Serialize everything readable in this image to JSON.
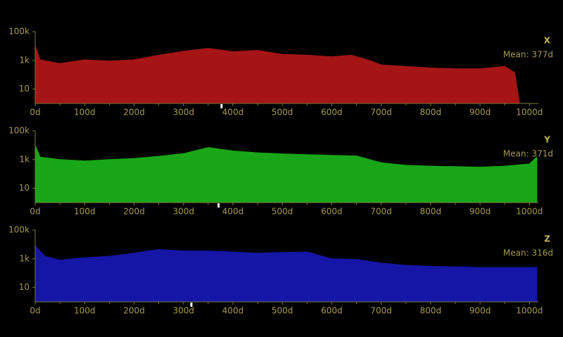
{
  "chart_data": [
    {
      "type": "area",
      "title": "X",
      "color": "#a51515",
      "yscale": "log",
      "x": [
        0,
        10,
        50,
        100,
        150,
        200,
        250,
        300,
        350,
        400,
        450,
        500,
        550,
        600,
        640,
        680,
        700,
        750,
        800,
        850,
        900,
        950,
        970,
        975,
        980
      ],
      "values": [
        10000,
        1100,
        600,
        1100,
        900,
        1100,
        2300,
        4300,
        7000,
        4000,
        5000,
        2600,
        2300,
        1800,
        2300,
        900,
        480,
        380,
        300,
        260,
        260,
        380,
        140,
        13,
        1
      ],
      "xlim": [
        0,
        1018
      ],
      "ylim": [
        1,
        100000
      ],
      "xticks": [
        {
          "value": 0,
          "label": "0d"
        },
        {
          "value": 100,
          "label": "100d"
        },
        {
          "value": 200,
          "label": "200d"
        },
        {
          "value": 300,
          "label": "300d"
        },
        {
          "value": 400,
          "label": "400d"
        },
        {
          "value": 500,
          "label": "500d"
        },
        {
          "value": 600,
          "label": "600d"
        },
        {
          "value": 700,
          "label": "700d"
        },
        {
          "value": 800,
          "label": "800d"
        },
        {
          "value": 900,
          "label": "900d"
        },
        {
          "value": 1000,
          "label": "1000d"
        }
      ],
      "yticks": [
        10,
        {
          "value": 1000,
          "label": "1k"
        },
        {
          "value": 100000,
          "label": "100k"
        }
      ],
      "mean": {
        "value": 377,
        "label": "Mean: 377d"
      }
    },
    {
      "type": "area",
      "title": "Y",
      "color": "#19a619",
      "yscale": "log",
      "x": [
        0,
        10,
        50,
        100,
        150,
        200,
        250,
        300,
        350,
        400,
        450,
        500,
        600,
        650,
        700,
        750,
        800,
        900,
        950,
        1000,
        1015
      ],
      "values": [
        10000,
        1500,
        1000,
        800,
        1000,
        1200,
        1700,
        2600,
        7000,
        4000,
        3000,
        2500,
        2000,
        1800,
        600,
        400,
        350,
        300,
        350,
        500,
        1500
      ],
      "xlim": [
        0,
        1018
      ],
      "ylim": [
        1,
        100000
      ],
      "xticks": [
        {
          "value": 0,
          "label": "0d"
        },
        {
          "value": 100,
          "label": "100d"
        },
        {
          "value": 200,
          "label": "200d"
        },
        {
          "value": 300,
          "label": "300d"
        },
        {
          "value": 400,
          "label": "400d"
        },
        {
          "value": 500,
          "label": "500d"
        },
        {
          "value": 600,
          "label": "600d"
        },
        {
          "value": 700,
          "label": "700d"
        },
        {
          "value": 800,
          "label": "800d"
        },
        {
          "value": 900,
          "label": "900d"
        },
        {
          "value": 1000,
          "label": "1000d"
        }
      ],
      "yticks": [
        10,
        {
          "value": 1000,
          "label": "1k"
        },
        {
          "value": 100000,
          "label": "100k"
        }
      ],
      "mean": {
        "value": 371,
        "label": "Mean: 371d"
      }
    },
    {
      "type": "area",
      "title": "Z",
      "color": "#1515a6",
      "yscale": "log",
      "x": [
        0,
        20,
        50,
        100,
        150,
        200,
        250,
        300,
        350,
        400,
        450,
        500,
        550,
        600,
        650,
        700,
        750,
        800,
        900,
        1000,
        1015
      ],
      "values": [
        8000,
        1500,
        800,
        1200,
        1500,
        2500,
        4500,
        3500,
        3500,
        3000,
        2500,
        2800,
        3000,
        1000,
        900,
        500,
        350,
        300,
        250,
        250,
        250
      ],
      "xlim": [
        0,
        1018
      ],
      "ylim": [
        1,
        100000
      ],
      "xticks": [
        {
          "value": 0,
          "label": "0d"
        },
        {
          "value": 100,
          "label": "100d"
        },
        {
          "value": 200,
          "label": "200d"
        },
        {
          "value": 300,
          "label": "300d"
        },
        {
          "value": 400,
          "label": "400d"
        },
        {
          "value": 500,
          "label": "500d"
        },
        {
          "value": 600,
          "label": "600d"
        },
        {
          "value": 700,
          "label": "700d"
        },
        {
          "value": 800,
          "label": "800d"
        },
        {
          "value": 900,
          "label": "900d"
        },
        {
          "value": 1000,
          "label": "1000d"
        }
      ],
      "yticks": [
        10,
        {
          "value": 1000,
          "label": "1k"
        },
        {
          "value": 100000,
          "label": "100k"
        }
      ],
      "mean": {
        "value": 316,
        "label": "Mean: 316d"
      }
    }
  ]
}
